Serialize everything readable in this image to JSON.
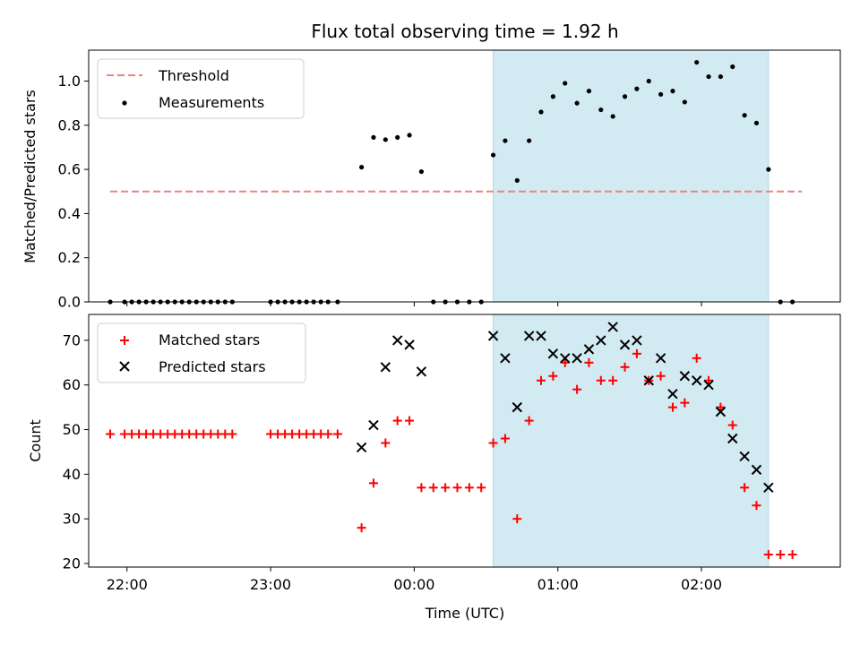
{
  "figure": {
    "title": "Flux total observing time = 1.92 h",
    "xlabel": "Time (UTC)",
    "colors": {
      "threshold": "#f08080",
      "measurements": "#000000",
      "matched": "#ff0000",
      "predicted": "#000000",
      "shade": "#add8e6"
    }
  },
  "chart_data": [
    {
      "type": "scatter",
      "name": "ratio",
      "ylabel": "Matched/Predicted stars",
      "xlim": [
        "21:44",
        "02:58"
      ],
      "ylim": [
        0,
        1.14
      ],
      "yticks": [
        0.0,
        0.2,
        0.4,
        0.6,
        0.8,
        1.0
      ],
      "xticks": [
        "22:00",
        "23:00",
        "00:00",
        "01:00",
        "02:00"
      ],
      "grid": false,
      "legend": "upper-left",
      "shaded_interval": [
        "00:33",
        "02:28"
      ],
      "threshold": {
        "name": "Threshold",
        "value": 0.5,
        "x_range": [
          "21:53",
          "02:42"
        ]
      },
      "series": [
        {
          "name": "Measurements",
          "points": [
            [
              "21:53",
              0.0
            ],
            [
              "21:59",
              0.0
            ],
            [
              "22:02",
              0.0
            ],
            [
              "22:05",
              0.0
            ],
            [
              "22:08",
              0.0
            ],
            [
              "22:11",
              0.0
            ],
            [
              "22:14",
              0.0
            ],
            [
              "22:17",
              0.0
            ],
            [
              "22:20",
              0.0
            ],
            [
              "22:23",
              0.0
            ],
            [
              "22:26",
              0.0
            ],
            [
              "22:29",
              0.0
            ],
            [
              "22:32",
              0.0
            ],
            [
              "22:35",
              0.0
            ],
            [
              "22:38",
              0.0
            ],
            [
              "22:41",
              0.0
            ],
            [
              "22:44",
              0.0
            ],
            [
              "23:00",
              0.0
            ],
            [
              "23:03",
              0.0
            ],
            [
              "23:06",
              0.0
            ],
            [
              "23:09",
              0.0
            ],
            [
              "23:12",
              0.0
            ],
            [
              "23:15",
              0.0
            ],
            [
              "23:18",
              0.0
            ],
            [
              "23:21",
              0.0
            ],
            [
              "23:24",
              0.0
            ],
            [
              "23:28",
              0.0
            ],
            [
              "23:38",
              0.61
            ],
            [
              "23:43",
              0.745
            ],
            [
              "23:48",
              0.735
            ],
            [
              "23:53",
              0.745
            ],
            [
              "23:58",
              0.755
            ],
            [
              "00:03",
              0.59
            ],
            [
              "00:08",
              0.0
            ],
            [
              "00:13",
              0.0
            ],
            [
              "00:18",
              0.0
            ],
            [
              "00:23",
              0.0
            ],
            [
              "00:28",
              0.0
            ],
            [
              "00:33",
              0.665
            ],
            [
              "00:38",
              0.73
            ],
            [
              "00:43",
              0.55
            ],
            [
              "00:48",
              0.73
            ],
            [
              "00:53",
              0.86
            ],
            [
              "00:58",
              0.93
            ],
            [
              "01:03",
              0.99
            ],
            [
              "01:08",
              0.9
            ],
            [
              "01:13",
              0.955
            ],
            [
              "01:18",
              0.87
            ],
            [
              "01:23",
              0.84
            ],
            [
              "01:28",
              0.93
            ],
            [
              "01:33",
              0.965
            ],
            [
              "01:38",
              1.0
            ],
            [
              "01:43",
              0.94
            ],
            [
              "01:48",
              0.955
            ],
            [
              "01:53",
              0.905
            ],
            [
              "01:58",
              1.085
            ],
            [
              "02:03",
              1.02
            ],
            [
              "02:08",
              1.02
            ],
            [
              "02:13",
              1.065
            ],
            [
              "02:18",
              0.845
            ],
            [
              "02:23",
              0.81
            ],
            [
              "02:28",
              0.6
            ],
            [
              "02:33",
              0.0
            ],
            [
              "02:38",
              0.0
            ]
          ]
        }
      ]
    },
    {
      "type": "scatter",
      "name": "counts",
      "ylabel": "Count",
      "xlim": [
        "21:44",
        "02:58"
      ],
      "ylim": [
        19.2,
        75.8
      ],
      "yticks": [
        20,
        30,
        40,
        50,
        60,
        70
      ],
      "xticks": [
        "22:00",
        "23:00",
        "00:00",
        "01:00",
        "02:00"
      ],
      "grid": false,
      "legend": "upper-left",
      "shaded_interval": [
        "00:33",
        "02:28"
      ],
      "series": [
        {
          "name": "Matched stars",
          "points": [
            [
              "21:53",
              49
            ],
            [
              "21:59",
              49
            ],
            [
              "22:02",
              49
            ],
            [
              "22:05",
              49
            ],
            [
              "22:08",
              49
            ],
            [
              "22:11",
              49
            ],
            [
              "22:14",
              49
            ],
            [
              "22:17",
              49
            ],
            [
              "22:20",
              49
            ],
            [
              "22:23",
              49
            ],
            [
              "22:26",
              49
            ],
            [
              "22:29",
              49
            ],
            [
              "22:32",
              49
            ],
            [
              "22:35",
              49
            ],
            [
              "22:38",
              49
            ],
            [
              "22:41",
              49
            ],
            [
              "22:44",
              49
            ],
            [
              "23:00",
              49
            ],
            [
              "23:03",
              49
            ],
            [
              "23:06",
              49
            ],
            [
              "23:09",
              49
            ],
            [
              "23:12",
              49
            ],
            [
              "23:15",
              49
            ],
            [
              "23:18",
              49
            ],
            [
              "23:21",
              49
            ],
            [
              "23:24",
              49
            ],
            [
              "23:28",
              49
            ],
            [
              "23:38",
              28
            ],
            [
              "23:43",
              38
            ],
            [
              "23:48",
              47
            ],
            [
              "23:53",
              52
            ],
            [
              "23:58",
              52
            ],
            [
              "00:03",
              37
            ],
            [
              "00:08",
              37
            ],
            [
              "00:13",
              37
            ],
            [
              "00:18",
              37
            ],
            [
              "00:23",
              37
            ],
            [
              "00:28",
              37
            ],
            [
              "00:33",
              47
            ],
            [
              "00:38",
              48
            ],
            [
              "00:43",
              30
            ],
            [
              "00:48",
              52
            ],
            [
              "00:53",
              61
            ],
            [
              "00:58",
              62
            ],
            [
              "01:03",
              65
            ],
            [
              "01:08",
              59
            ],
            [
              "01:13",
              65
            ],
            [
              "01:18",
              61
            ],
            [
              "01:23",
              61
            ],
            [
              "01:28",
              64
            ],
            [
              "01:33",
              67
            ],
            [
              "01:38",
              61
            ],
            [
              "01:43",
              62
            ],
            [
              "01:48",
              55
            ],
            [
              "01:53",
              56
            ],
            [
              "01:58",
              66
            ],
            [
              "02:03",
              61
            ],
            [
              "02:08",
              55
            ],
            [
              "02:13",
              51
            ],
            [
              "02:18",
              37
            ],
            [
              "02:23",
              33
            ],
            [
              "02:28",
              22
            ],
            [
              "02:33",
              22
            ],
            [
              "02:38",
              22
            ]
          ]
        },
        {
          "name": "Predicted stars",
          "points": [
            [
              "23:38",
              46
            ],
            [
              "23:43",
              51
            ],
            [
              "23:48",
              64
            ],
            [
              "23:53",
              70
            ],
            [
              "23:58",
              69
            ],
            [
              "00:03",
              63
            ],
            [
              "00:33",
              71
            ],
            [
              "00:38",
              66
            ],
            [
              "00:43",
              55
            ],
            [
              "00:48",
              71
            ],
            [
              "00:53",
              71
            ],
            [
              "00:58",
              67
            ],
            [
              "01:03",
              66
            ],
            [
              "01:08",
              66
            ],
            [
              "01:13",
              68
            ],
            [
              "01:18",
              70
            ],
            [
              "01:23",
              73
            ],
            [
              "01:28",
              69
            ],
            [
              "01:33",
              70
            ],
            [
              "01:38",
              61
            ],
            [
              "01:43",
              66
            ],
            [
              "01:48",
              58
            ],
            [
              "01:53",
              62
            ],
            [
              "01:58",
              61
            ],
            [
              "02:03",
              60
            ],
            [
              "02:08",
              54
            ],
            [
              "02:13",
              48
            ],
            [
              "02:18",
              44
            ],
            [
              "02:23",
              41
            ],
            [
              "02:28",
              37
            ]
          ]
        }
      ]
    }
  ]
}
